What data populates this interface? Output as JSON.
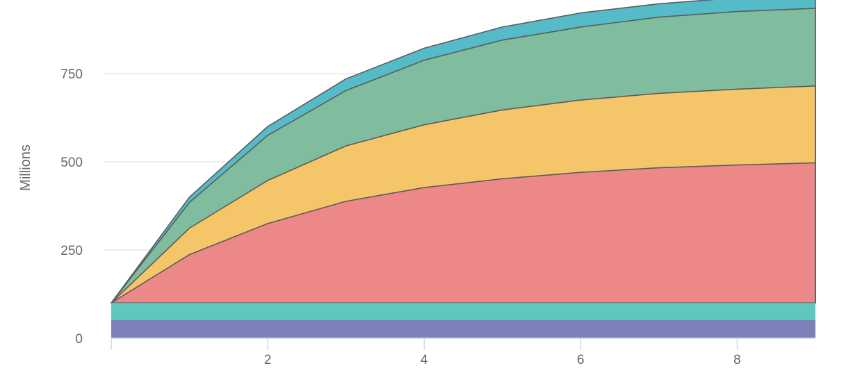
{
  "chart_data": {
    "type": "area",
    "ylabel": "Millions",
    "xlabel": "",
    "x": [
      0,
      1,
      2,
      3,
      4,
      5,
      6,
      7,
      8,
      9
    ],
    "xlim": [
      0,
      9
    ],
    "ylim": [
      0,
      960
    ],
    "x_ticks": [
      2,
      4,
      6,
      8
    ],
    "y_ticks": [
      0,
      250,
      500,
      750
    ],
    "grid": true,
    "legend": "none",
    "stacked": true,
    "baseline_bands": [
      {
        "from": 0,
        "to": 52,
        "color": "#7c80b8"
      },
      {
        "from": 52,
        "to": 100,
        "color": "#5ec8bf"
      }
    ],
    "series": [
      {
        "color": "#ec8888",
        "values": [
          100,
          237,
          325,
          388,
          427,
          452,
          470,
          483,
          491,
          497
        ]
      },
      {
        "color": "#f5c56a",
        "values": [
          100,
          312,
          447,
          545,
          605,
          647,
          675,
          694,
          706,
          715
        ]
      },
      {
        "color": "#7fbd9e",
        "values": [
          100,
          385,
          575,
          702,
          788,
          845,
          882,
          910,
          926,
          935
        ]
      },
      {
        "color": "#56bbc9",
        "values": [
          100,
          400,
          600,
          735,
          822,
          882,
          922,
          948,
          965,
          975
        ]
      }
    ]
  }
}
